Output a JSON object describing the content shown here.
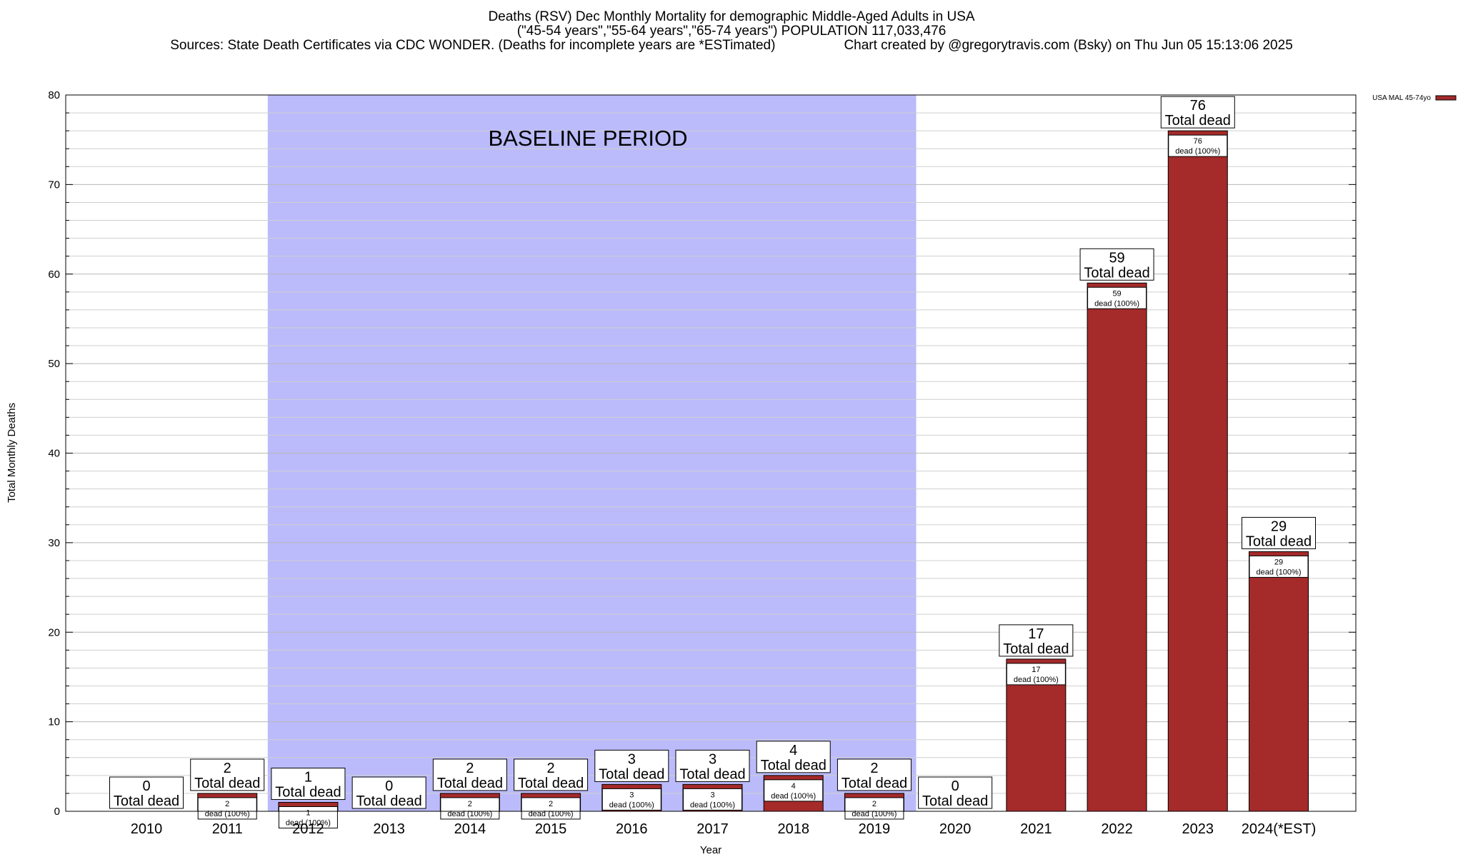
{
  "titles": {
    "line1": "Deaths (RSV) Dec Monthly Mortality for demographic Middle-Aged Adults in USA",
    "line2": "(\"45-54 years\",\"55-64 years\",\"65-74 years\") POPULATION 117,033,476",
    "line3_left": "Sources: State Death Certificates via CDC WONDER. (Deaths for incomplete years are *ESTimated)",
    "line3_right": "Chart created by @gregorytravis.com (Bsky) on Thu Jun 05 15:13:06 2025"
  },
  "chart_data": {
    "type": "bar",
    "xlabel": "Year",
    "ylabel": "Total Monthly Deaths",
    "ylim": [
      0,
      80
    ],
    "y_ticks": [
      0,
      10,
      20,
      30,
      40,
      50,
      60,
      70,
      80
    ],
    "grid": true,
    "categories": [
      "2010",
      "2011",
      "2012",
      "2013",
      "2014",
      "2015",
      "2016",
      "2017",
      "2018",
      "2019",
      "2020",
      "2021",
      "2022",
      "2023",
      "2024(*EST)"
    ],
    "series": [
      {
        "name": "USA MAL 45-74yo",
        "color": "#a52a2a",
        "values": [
          0,
          2,
          1,
          0,
          2,
          2,
          3,
          3,
          4,
          2,
          0,
          17,
          59,
          76,
          29
        ]
      }
    ],
    "bar_label_text": "Total dead",
    "inner_label_text": "dead (100%)",
    "annotation": {
      "text": "BASELINE PERIOD",
      "from": "2012",
      "to": "2019",
      "color": "#bbbbfb"
    },
    "legend": {
      "placement": "top-right",
      "entries": [
        "USA MAL 45-74yo"
      ]
    }
  }
}
